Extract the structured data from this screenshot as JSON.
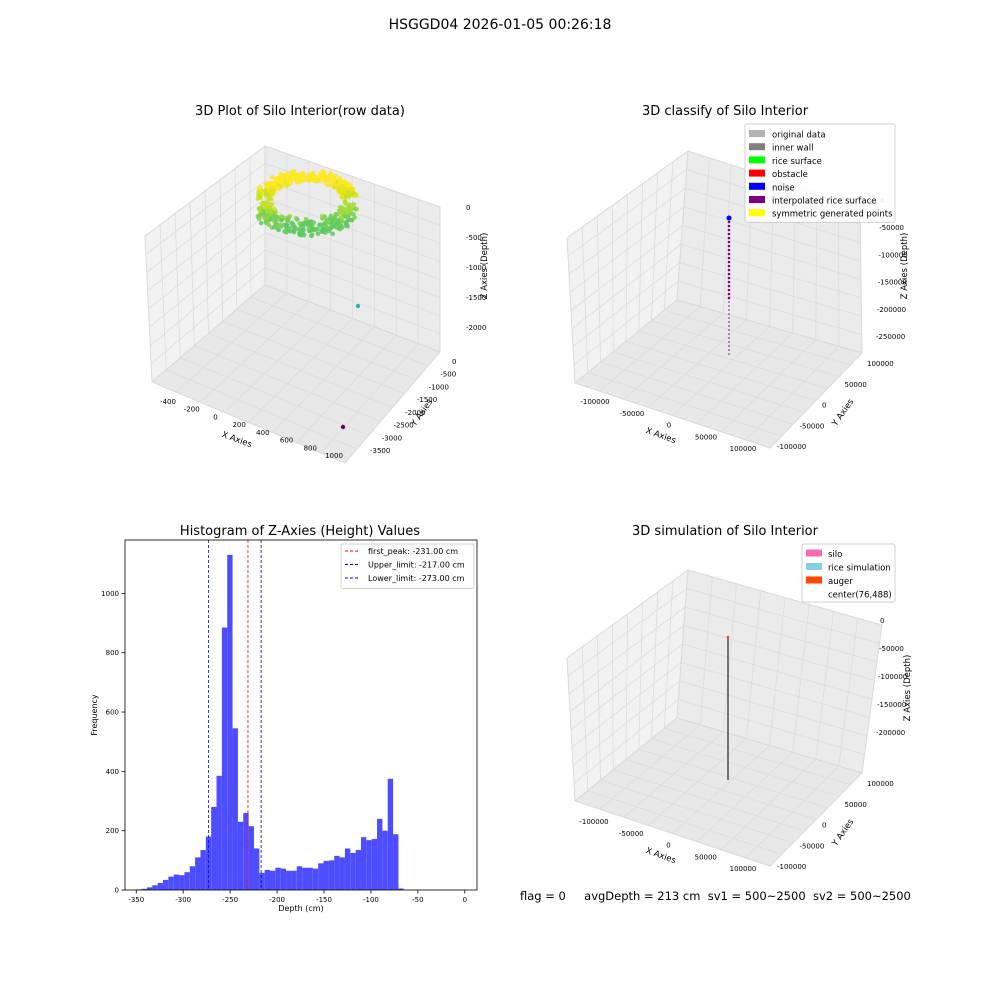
{
  "figure": {
    "title": "HSGGD04 2026-01-05 00:26:18",
    "status": {
      "flag": "flag = 0",
      "avg_depth": "avgDepth = 213 cm",
      "sv1": "sv1 = 500~2500",
      "sv2": "sv2 = 500~2500"
    }
  },
  "chart_data": [
    {
      "type": "scatter",
      "projection": "3d",
      "title": "3D Plot of Silo Interior(row data)",
      "xlabel": "X Axies",
      "ylabel": "Y Axies",
      "zlabel": "Z Axies (Depth)",
      "x_ticks": [
        "-400",
        "-200",
        "0",
        "200",
        "400",
        "600",
        "800",
        "1000"
      ],
      "y_ticks": [
        "0",
        "-500",
        "-1000",
        "-1500",
        "-2000",
        "-2500",
        "-3000",
        "-3500"
      ],
      "z_ticks": [
        "0",
        "-500",
        "-1000",
        "-1500",
        "-2000"
      ],
      "colormap": "viridis",
      "grid": true,
      "outliers": [
        {
          "color": "#2ab7a9"
        },
        {
          "color": "#5c0a63"
        }
      ]
    },
    {
      "type": "scatter",
      "projection": "3d",
      "title": "3D classify of Silo Interior",
      "xlabel": "X Axies",
      "ylabel": "Y Axies",
      "zlabel": "Z Axies (Depth)",
      "x_ticks": [
        "-100000",
        "-50000",
        "0",
        "50000",
        "100000"
      ],
      "y_ticks": [
        "100000",
        "50000",
        "0",
        "-50000",
        "-100000"
      ],
      "z_ticks": [
        "0",
        "-50000",
        "-100000",
        "-150000",
        "-200000",
        "-250000"
      ],
      "grid": true,
      "legend_position": "top-right",
      "legend": [
        {
          "label": "original data",
          "color": "#b3b3b3"
        },
        {
          "label": "inner wall",
          "color": "#808080"
        },
        {
          "label": "rice surface",
          "color": "#00ff00"
        },
        {
          "label": "obstacle",
          "color": "#ff0000"
        },
        {
          "label": "noise",
          "color": "#0000ff"
        },
        {
          "label": "interpolated rice surface",
          "color": "#800080"
        },
        {
          "label": "symmetric generated points",
          "color": "#ffff00"
        }
      ]
    },
    {
      "type": "bar",
      "subtype": "histogram",
      "title": "Histogram of Z-Axies (Height) Values",
      "xlabel": "Depth (cm)",
      "ylabel": "Frequency",
      "xlim": [
        -362,
        13
      ],
      "ylim": [
        0,
        1180
      ],
      "x_ticks": [
        -350,
        -300,
        -250,
        -200,
        -150,
        -100,
        -50,
        0
      ],
      "y_ticks": [
        0,
        200,
        400,
        600,
        800,
        1000
      ],
      "bar_color": "#4d4dff",
      "bin_start": -350,
      "bin_width": 5.7,
      "values": [
        2,
        4,
        9,
        16,
        24,
        34,
        45,
        52,
        50,
        60,
        80,
        110,
        135,
        180,
        280,
        385,
        885,
        1130,
        545,
        230,
        260,
        215,
        140,
        58,
        68,
        65,
        75,
        72,
        65,
        65,
        80,
        75,
        75,
        72,
        90,
        98,
        100,
        115,
        110,
        140,
        125,
        135,
        178,
        168,
        172,
        240,
        200,
        375,
        188,
        5
      ],
      "lines": [
        {
          "label": "first_peak: -231.00 cm",
          "x": -231,
          "color": "#ff0000"
        },
        {
          "label": "Upper_limit: -217.00 cm",
          "x": -217,
          "color": "#00008b"
        },
        {
          "label": "Lower_limit: -273.00 cm",
          "x": -273,
          "color": "#0000ff"
        }
      ],
      "legend_position": "top-right",
      "grid": false
    },
    {
      "type": "scatter",
      "projection": "3d",
      "title": "3D simulation of Silo Interior",
      "xlabel": "X Axies",
      "ylabel": "Y Axies",
      "zlabel": "Z Axies (Depth)",
      "x_ticks": [
        "-100000",
        "-50000",
        "0",
        "50000",
        "100000"
      ],
      "y_ticks": [
        "100000",
        "50000",
        "0",
        "-50000",
        "-100000"
      ],
      "z_ticks": [
        "0",
        "-50000",
        "-100000",
        "-150000",
        "-200000"
      ],
      "grid": true,
      "legend_position": "top-right",
      "legend": [
        {
          "label": "silo",
          "color": "#ff69b4"
        },
        {
          "label": "rice simulation",
          "color": "#87ceeb"
        },
        {
          "label": "auger",
          "color": "#ff4500"
        },
        {
          "label": "center(76,488)",
          "color": "#ffffff"
        }
      ]
    }
  ]
}
